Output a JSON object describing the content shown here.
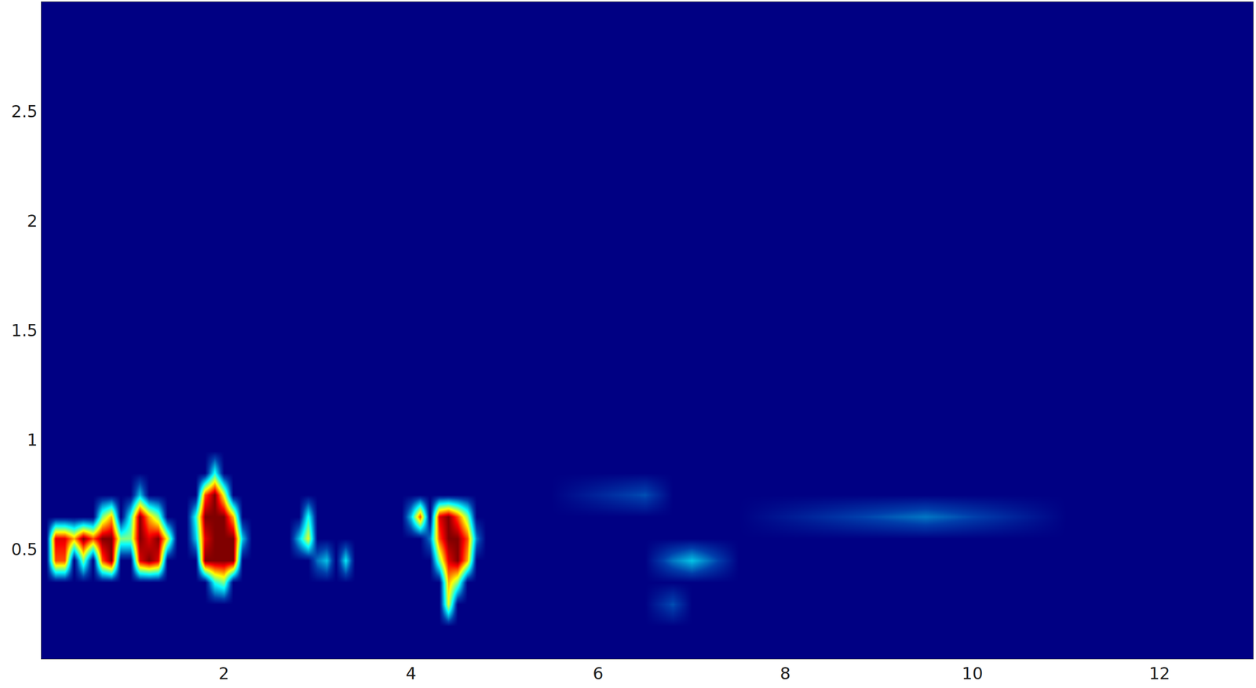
{
  "chart_data": {
    "type": "heatmap",
    "x": [
      0.1,
      0.2,
      0.3,
      0.4,
      0.5,
      0.6,
      0.7,
      0.8,
      0.9,
      1.0,
      1.1,
      1.2,
      1.3,
      1.4,
      1.5,
      1.6,
      1.7,
      1.8,
      1.9,
      2.0,
      2.1,
      2.2,
      2.3,
      2.4,
      2.5,
      2.6,
      2.7,
      2.8,
      2.9,
      3.0,
      3.1,
      3.2,
      3.3,
      3.4,
      3.5,
      3.6,
      3.7,
      3.8,
      3.9,
      4.0,
      4.1,
      4.2,
      4.3,
      4.4,
      4.5,
      4.6,
      4.7,
      4.8,
      4.9,
      5.5,
      6.5,
      6.8,
      7.0,
      7.5,
      9.5,
      11,
      12.5
    ],
    "y": [
      0.05,
      0.15,
      0.25,
      0.35,
      0.45,
      0.55,
      0.65,
      0.75,
      0.85,
      0.95,
      1.5,
      2.5
    ],
    "z": [
      [
        0,
        0,
        0,
        0,
        0,
        0,
        0,
        0,
        0,
        0,
        0,
        0,
        0,
        0,
        0,
        0,
        0,
        0,
        0,
        0,
        0,
        0,
        0,
        0,
        0,
        0,
        0,
        0,
        0,
        0,
        0,
        0,
        0,
        0,
        0,
        0,
        0,
        0,
        0,
        0,
        0,
        0,
        0,
        0,
        0,
        0,
        0,
        0,
        0,
        0,
        0,
        0,
        0,
        0,
        0,
        0,
        0
      ],
      [
        0,
        0,
        0,
        0,
        0,
        0,
        0,
        0,
        0,
        0,
        0,
        0,
        0,
        0,
        0,
        0,
        0,
        0,
        0,
        0,
        0,
        0,
        0,
        0,
        0,
        0,
        0,
        0,
        0,
        0,
        0,
        0,
        0,
        0,
        0,
        0,
        0,
        0,
        0,
        0,
        0,
        0,
        0,
        0,
        0,
        0,
        0,
        0,
        0,
        0,
        0,
        0,
        0,
        0,
        0,
        0,
        0
      ],
      [
        0,
        0,
        0,
        0,
        0,
        0,
        0,
        0,
        0,
        0,
        0,
        0,
        0,
        0,
        0,
        0,
        0,
        0,
        0,
        0,
        0,
        0,
        0,
        0,
        0,
        0,
        0,
        0,
        0,
        0,
        0,
        0,
        0,
        0,
        0,
        0,
        0,
        0,
        0,
        0,
        0,
        0,
        0,
        0.6,
        0,
        0,
        0,
        0,
        0,
        0,
        0,
        0.15,
        0,
        0,
        0,
        0,
        0
      ],
      [
        0,
        0,
        0,
        0,
        0,
        0,
        0,
        0,
        0,
        0,
        0,
        0,
        0,
        0,
        0,
        0,
        0,
        0,
        0.4,
        0.5,
        0,
        0,
        0,
        0,
        0,
        0,
        0,
        0,
        0,
        0,
        0,
        0,
        0,
        0,
        0,
        0,
        0,
        0,
        0,
        0,
        0,
        0,
        0,
        0.7,
        0.5,
        0,
        0,
        0,
        0,
        0,
        0,
        0,
        0,
        0,
        0,
        0,
        0
      ],
      [
        0,
        0.8,
        0.8,
        0,
        0.5,
        0,
        0.8,
        1,
        0,
        0,
        0.9,
        1,
        0.9,
        0,
        0,
        0,
        0,
        1,
        1,
        1,
        1,
        0,
        0,
        0,
        0,
        0,
        0,
        0,
        0,
        0.2,
        0.3,
        0,
        0.35,
        0,
        0,
        0,
        0,
        0,
        0,
        0,
        0,
        0,
        0.5,
        0.9,
        1,
        0.7,
        0,
        0,
        0,
        0,
        0,
        0.2,
        0.3,
        0,
        0,
        0,
        0
      ],
      [
        0,
        0.9,
        0.9,
        0.7,
        1,
        0.8,
        1,
        1,
        0.5,
        0.5,
        1,
        0.9,
        1,
        0.6,
        0,
        0,
        0.3,
        0.9,
        1,
        1,
        1,
        0.3,
        0,
        0,
        0,
        0,
        0,
        0.3,
        0.6,
        0,
        0,
        0,
        0,
        0,
        0,
        0,
        0,
        0,
        0,
        0,
        0,
        0.2,
        0.8,
        1,
        1,
        0.8,
        0.2,
        0,
        0,
        0,
        0,
        0,
        0,
        0,
        0,
        0,
        0
      ],
      [
        0,
        0,
        0,
        0,
        0,
        0,
        0.5,
        0.7,
        0,
        0.4,
        1,
        0.7,
        0.5,
        0,
        0,
        0,
        0.4,
        1,
        1,
        1,
        0.7,
        0,
        0,
        0,
        0,
        0,
        0,
        0,
        0.4,
        0,
        0,
        0,
        0,
        0,
        0,
        0,
        0,
        0,
        0,
        0.3,
        0.8,
        0,
        0.9,
        1,
        0.8,
        0.5,
        0,
        0,
        0,
        0,
        0,
        0,
        0,
        0,
        0.2,
        0,
        0
      ],
      [
        0,
        0,
        0,
        0,
        0,
        0,
        0,
        0,
        0,
        0,
        0.3,
        0,
        0,
        0,
        0,
        0,
        0,
        0.8,
        1,
        0.6,
        0,
        0,
        0,
        0,
        0,
        0,
        0,
        0,
        0,
        0,
        0,
        0,
        0,
        0,
        0,
        0,
        0,
        0,
        0,
        0,
        0,
        0,
        0,
        0,
        0,
        0,
        0,
        0,
        0,
        0,
        0.15,
        0,
        0,
        0,
        0,
        0,
        0
      ],
      [
        0,
        0,
        0,
        0,
        0,
        0,
        0,
        0,
        0,
        0,
        0,
        0,
        0,
        0,
        0,
        0,
        0,
        0,
        0.4,
        0,
        0,
        0,
        0,
        0,
        0,
        0,
        0,
        0,
        0,
        0,
        0,
        0,
        0,
        0,
        0,
        0,
        0,
        0,
        0,
        0,
        0,
        0,
        0,
        0,
        0,
        0,
        0,
        0,
        0,
        0,
        0,
        0,
        0,
        0,
        0,
        0,
        0
      ],
      [
        0,
        0,
        0,
        0,
        0,
        0,
        0,
        0,
        0,
        0,
        0,
        0,
        0,
        0,
        0,
        0,
        0,
        0,
        0,
        0,
        0,
        0,
        0,
        0,
        0,
        0,
        0,
        0,
        0,
        0,
        0,
        0,
        0,
        0,
        0,
        0,
        0,
        0,
        0,
        0,
        0,
        0,
        0,
        0,
        0,
        0,
        0,
        0,
        0,
        0,
        0,
        0,
        0,
        0,
        0,
        0,
        0
      ],
      [
        0,
        0,
        0,
        0,
        0,
        0,
        0,
        0,
        0,
        0,
        0,
        0,
        0,
        0,
        0,
        0,
        0,
        0,
        0,
        0,
        0,
        0,
        0,
        0,
        0,
        0,
        0,
        0,
        0,
        0,
        0,
        0,
        0,
        0,
        0,
        0,
        0,
        0,
        0,
        0,
        0,
        0,
        0,
        0,
        0,
        0,
        0,
        0,
        0,
        0,
        0,
        0,
        0,
        0,
        0,
        0,
        0
      ],
      [
        0,
        0,
        0,
        0,
        0,
        0,
        0,
        0,
        0,
        0,
        0,
        0,
        0,
        0,
        0,
        0,
        0,
        0,
        0,
        0,
        0,
        0,
        0,
        0,
        0,
        0,
        0,
        0,
        0,
        0,
        0,
        0,
        0,
        0,
        0,
        0,
        0,
        0,
        0,
        0,
        0,
        0,
        0,
        0,
        0,
        0,
        0,
        0,
        0,
        0,
        0,
        0,
        0,
        0,
        0,
        0,
        0
      ]
    ],
    "zlim": [
      0,
      1
    ],
    "xlim": [
      0.05,
      13
    ],
    "ylim": [
      0,
      3
    ],
    "xticks": [
      2,
      4,
      6,
      8,
      10,
      12
    ],
    "yticks": [
      0.5,
      1,
      1.5,
      2,
      2.5
    ],
    "grid": false
  }
}
